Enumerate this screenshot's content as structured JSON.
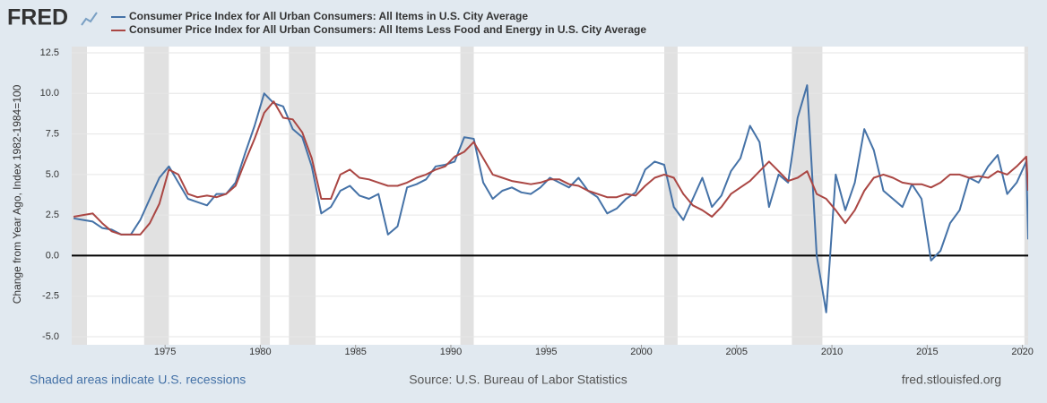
{
  "chart_data": {
    "type": "line",
    "logo": "FRED",
    "ylabel": "Change from Year Ago, Index 1982-1984=100",
    "recession_note": "Shaded areas indicate U.S. recessions",
    "source": "Source: U.S. Bureau of Labor Statistics",
    "website": "fred.stlouisfed.org",
    "x": [
      1970.2,
      1970.7,
      1971.2,
      1971.7,
      1972.2,
      1972.7,
      1973.2,
      1973.7,
      1974.2,
      1974.7,
      1975.2,
      1975.7,
      1976.2,
      1976.7,
      1977.2,
      1977.7,
      1978.2,
      1978.7,
      1979.2,
      1979.7,
      1980.2,
      1980.7,
      1981.2,
      1981.7,
      1982.2,
      1982.7,
      1983.2,
      1983.7,
      1984.2,
      1984.7,
      1985.2,
      1985.7,
      1986.2,
      1986.7,
      1987.2,
      1987.7,
      1988.2,
      1988.7,
      1989.2,
      1989.7,
      1990.2,
      1990.7,
      1991.2,
      1991.7,
      1992.2,
      1992.7,
      1993.2,
      1993.7,
      1994.2,
      1994.7,
      1995.2,
      1995.7,
      1996.2,
      1996.7,
      1997.2,
      1997.7,
      1998.2,
      1998.7,
      1999.2,
      1999.7,
      2000.2,
      2000.7,
      2001.2,
      2001.7,
      2002.2,
      2002.7,
      2003.2,
      2003.7,
      2004.2,
      2004.7,
      2005.2,
      2005.7,
      2006.2,
      2006.7,
      2007.2,
      2007.7,
      2008.2,
      2008.7,
      2009.2,
      2009.7,
      2010.2,
      2010.7,
      2011.2,
      2011.7,
      2012.2,
      2012.7,
      2013.2,
      2013.7,
      2014.2,
      2014.7,
      2015.2,
      2015.7,
      2016.2,
      2016.7,
      2017.2,
      2017.7,
      2018.2,
      2018.7,
      2019.2,
      2019.7,
      2020.2,
      2020.3
    ],
    "series": [
      {
        "name": "Consumer Price Index for All Urban Consumers: All Items in U.S. City Average",
        "color": "#4572a7",
        "values": [
          2.3,
          2.2,
          2.1,
          1.7,
          1.6,
          1.3,
          1.3,
          2.2,
          3.5,
          4.8,
          5.5,
          4.5,
          3.5,
          3.3,
          3.1,
          3.8,
          3.8,
          4.5,
          6.3,
          8.0,
          10.0,
          9.4,
          9.2,
          7.8,
          7.3,
          5.5,
          2.6,
          3.0,
          4.0,
          4.3,
          3.7,
          3.5,
          3.8,
          1.3,
          1.8,
          4.2,
          4.4,
          4.7,
          5.5,
          5.6,
          5.8,
          7.3,
          7.2,
          4.5,
          3.5,
          4.0,
          4.2,
          3.9,
          3.8,
          4.2,
          4.8,
          4.5,
          4.2,
          4.8,
          4.0,
          3.6,
          2.6,
          2.9,
          3.5,
          3.9,
          5.3,
          5.8,
          5.6,
          3.0,
          2.2,
          3.5,
          4.8,
          3.0,
          3.7,
          5.2,
          6.0,
          8.0,
          7.0,
          3.0,
          5.0,
          4.5,
          8.5,
          10.5,
          0.0,
          -3.5,
          5.0,
          2.8,
          4.5,
          7.8,
          6.5,
          4.0,
          3.5,
          3.0,
          4.4,
          3.5,
          -0.3,
          0.3,
          2.0,
          2.8,
          4.8,
          4.5,
          5.5,
          6.2,
          3.8,
          4.5,
          5.8,
          1.0
        ]
      },
      {
        "name": "Consumer Price Index for All Urban Consumers: All Items Less Food and Energy in U.S. City Average",
        "color": "#aa4643",
        "values": [
          2.4,
          2.5,
          2.6,
          2.0,
          1.5,
          1.3,
          1.3,
          1.3,
          2.0,
          3.2,
          5.3,
          5.0,
          3.8,
          3.6,
          3.7,
          3.6,
          3.8,
          4.3,
          5.8,
          7.2,
          8.8,
          9.5,
          8.5,
          8.4,
          7.6,
          6.0,
          3.5,
          3.5,
          5.0,
          5.3,
          4.8,
          4.7,
          4.5,
          4.3,
          4.3,
          4.5,
          4.8,
          5.0,
          5.3,
          5.5,
          6.1,
          6.4,
          7.0,
          6.0,
          5.0,
          4.8,
          4.6,
          4.5,
          4.4,
          4.5,
          4.7,
          4.7,
          4.4,
          4.3,
          4.0,
          3.8,
          3.6,
          3.6,
          3.8,
          3.7,
          4.3,
          4.8,
          5.0,
          4.8,
          3.8,
          3.1,
          2.8,
          2.4,
          3.0,
          3.8,
          4.2,
          4.6,
          5.2,
          5.8,
          5.2,
          4.6,
          4.8,
          5.2,
          3.8,
          3.5,
          2.8,
          2.0,
          2.8,
          4.0,
          4.8,
          5.0,
          4.8,
          4.5,
          4.4,
          4.4,
          4.2,
          4.5,
          5.0,
          5.0,
          4.8,
          4.9,
          4.8,
          5.2,
          5.0,
          5.5,
          6.1,
          4.0
        ]
      }
    ],
    "recessions": [
      [
        1969.9,
        1970.9
      ],
      [
        1973.9,
        1975.2
      ],
      [
        1980.0,
        1980.5
      ],
      [
        1981.5,
        1982.9
      ],
      [
        1990.5,
        1991.2
      ],
      [
        2001.2,
        2001.9
      ],
      [
        2007.9,
        2009.5
      ],
      [
        2020.1,
        2020.3
      ]
    ],
    "recession_color": "#e1e1e1",
    "reference_line": 0,
    "xlim": [
      1970.1,
      2020.3
    ],
    "ylim": [
      -5,
      12.5
    ],
    "xticks": [
      1975,
      1980,
      1985,
      1990,
      1995,
      2000,
      2005,
      2010,
      2015,
      2020
    ],
    "yticks": [
      {
        "value": -5,
        "label": "-5.0"
      },
      -2.5,
      {
        "value": 0,
        "label": "0.0"
      },
      2.5,
      {
        "value": 5,
        "label": "5.0"
      },
      7.5,
      {
        "value": 10,
        "label": "10.0"
      },
      12.5
    ],
    "grid": true
  }
}
